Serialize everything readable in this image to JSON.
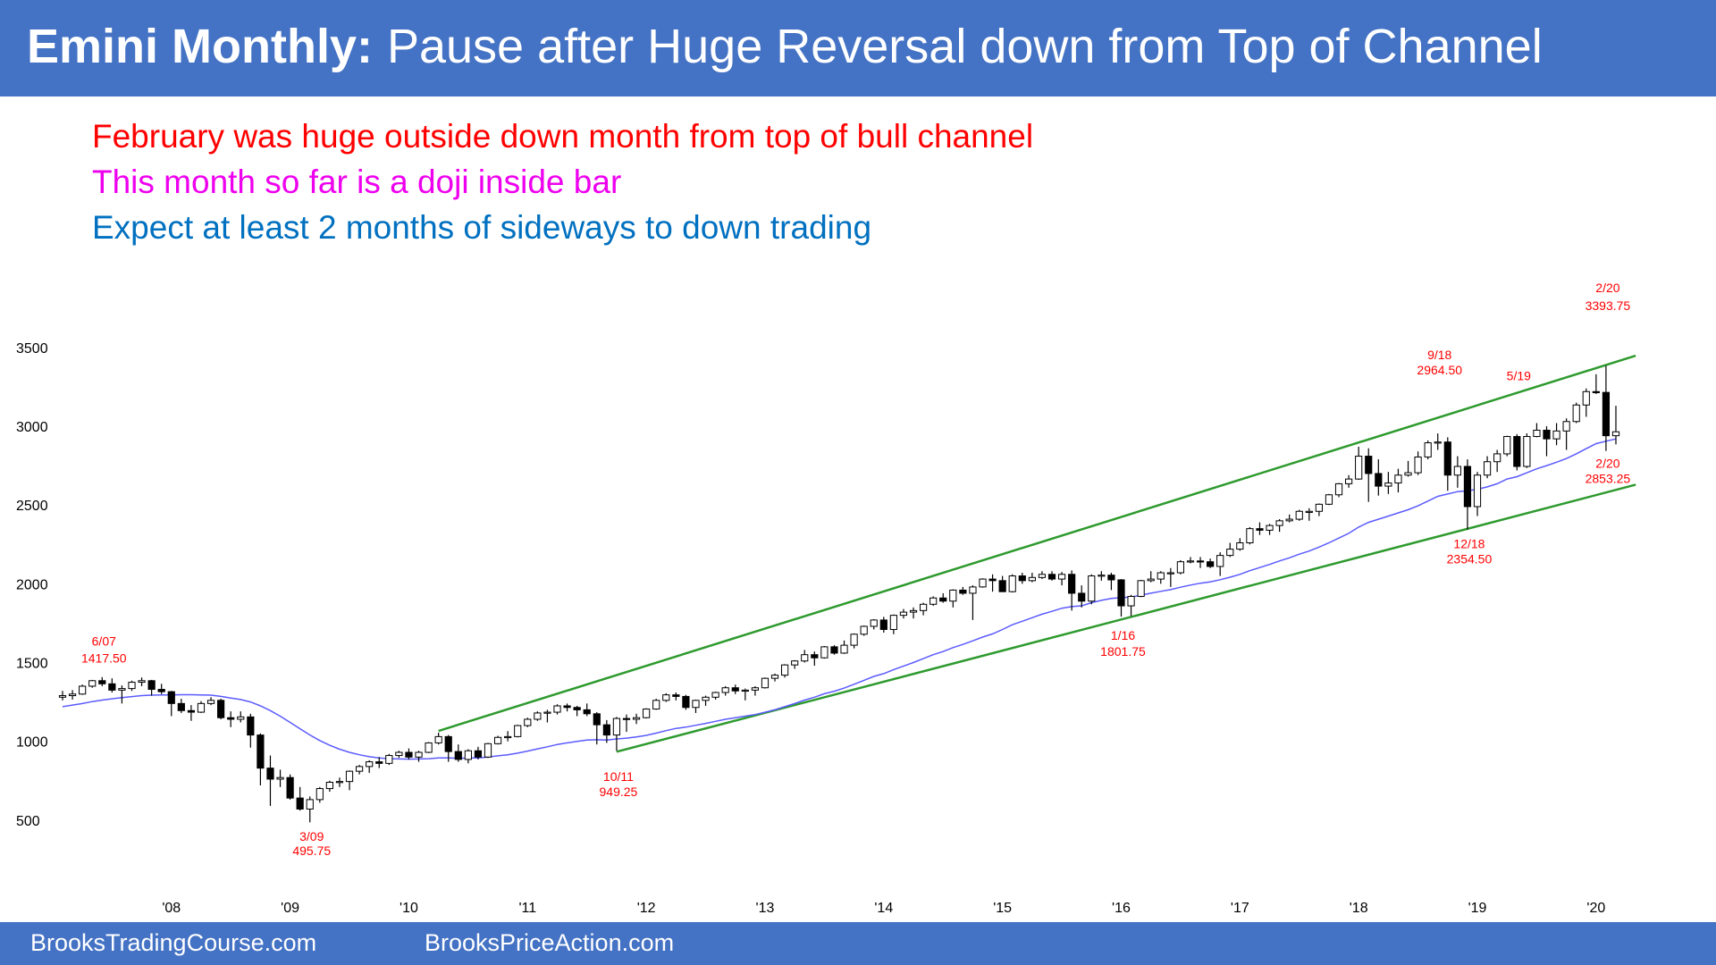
{
  "chart_data": {
    "type": "candlestick",
    "title_lead": "Emini Monthly:",
    "title": "Pause after Huge Reversal down from Top of Channel",
    "notes": [
      {
        "text": "February was huge outside down month from top of bull channel",
        "color": "#ff0000"
      },
      {
        "text": "This month so far is a doji inside bar",
        "color": "#ee00ee"
      },
      {
        "text": "Expect at least 2 months of sideways to down trading",
        "color": "#0070c0"
      }
    ],
    "categories": [
      null,
      null,
      null,
      null,
      null,
      null,
      null,
      null,
      null,
      null,
      null,
      "'08",
      null,
      null,
      null,
      null,
      null,
      null,
      null,
      null,
      null,
      null,
      null,
      "'09",
      null,
      null,
      null,
      null,
      null,
      null,
      null,
      null,
      null,
      null,
      null,
      "'10",
      null,
      null,
      null,
      null,
      null,
      null,
      null,
      null,
      null,
      null,
      null,
      "'11",
      null,
      null,
      null,
      null,
      null,
      null,
      null,
      null,
      null,
      null,
      null,
      "'12",
      null,
      null,
      null,
      null,
      null,
      null,
      null,
      null,
      null,
      null,
      null,
      "'13",
      null,
      null,
      null,
      null,
      null,
      null,
      null,
      null,
      null,
      null,
      null,
      "'14",
      null,
      null,
      null,
      null,
      null,
      null,
      null,
      null,
      null,
      null,
      null,
      "'15",
      null,
      null,
      null,
      null,
      null,
      null,
      null,
      null,
      null,
      null,
      null,
      "'16",
      null,
      null,
      null,
      null,
      null,
      null,
      null,
      null,
      null,
      null,
      null,
      "'17",
      null,
      null,
      null,
      null,
      null,
      null,
      null,
      null,
      null,
      null,
      null,
      "'18",
      null,
      null,
      null,
      null,
      null,
      null,
      null,
      null,
      null,
      null,
      null,
      "'19",
      null,
      null,
      null,
      null,
      null,
      null,
      null,
      null,
      null,
      null,
      null,
      "'20",
      null,
      null
    ],
    "ohlc": [
      [
        1290,
        1330,
        1270,
        1300
      ],
      [
        1300,
        1335,
        1275,
        1310
      ],
      [
        1310,
        1370,
        1305,
        1360
      ],
      [
        1360,
        1400,
        1350,
        1395
      ],
      [
        1395,
        1417.5,
        1360,
        1375
      ],
      [
        1375,
        1410,
        1320,
        1335
      ],
      [
        1335,
        1365,
        1250,
        1345
      ],
      [
        1345,
        1395,
        1330,
        1385
      ],
      [
        1385,
        1415,
        1360,
        1395
      ],
      [
        1395,
        1400,
        1300,
        1340
      ],
      [
        1340,
        1375,
        1310,
        1325
      ],
      [
        1325,
        1330,
        1170,
        1250
      ],
      [
        1250,
        1280,
        1190,
        1205
      ],
      [
        1205,
        1240,
        1140,
        1195
      ],
      [
        1195,
        1265,
        1190,
        1250
      ],
      [
        1250,
        1290,
        1240,
        1270
      ],
      [
        1270,
        1280,
        1150,
        1160
      ],
      [
        1160,
        1200,
        1100,
        1150
      ],
      [
        1150,
        1200,
        1130,
        1165
      ],
      [
        1165,
        1185,
        970,
        1050
      ],
      [
        1050,
        1060,
        730,
        840
      ],
      [
        840,
        920,
        600,
        770
      ],
      [
        770,
        830,
        720,
        780
      ],
      [
        780,
        800,
        640,
        650
      ],
      [
        650,
        720,
        570,
        580
      ],
      [
        580,
        660,
        495.75,
        640
      ],
      [
        640,
        720,
        620,
        710
      ],
      [
        710,
        760,
        690,
        750
      ],
      [
        750,
        780,
        720,
        755
      ],
      [
        755,
        825,
        700,
        820
      ],
      [
        820,
        860,
        800,
        850
      ],
      [
        850,
        890,
        810,
        880
      ],
      [
        880,
        910,
        840,
        870
      ],
      [
        870,
        930,
        860,
        920
      ],
      [
        920,
        950,
        905,
        940
      ],
      [
        940,
        965,
        895,
        910
      ],
      [
        910,
        950,
        880,
        940
      ],
      [
        940,
        1005,
        935,
        1000
      ],
      [
        1000,
        1065,
        990,
        1040
      ],
      [
        1040,
        1050,
        880,
        945
      ],
      [
        945,
        990,
        880,
        895
      ],
      [
        895,
        960,
        870,
        950
      ],
      [
        950,
        975,
        895,
        910
      ],
      [
        910,
        1000,
        905,
        995
      ],
      [
        995,
        1045,
        990,
        1035
      ],
      [
        1035,
        1075,
        1010,
        1040
      ],
      [
        1040,
        1115,
        1035,
        1110
      ],
      [
        1110,
        1160,
        1100,
        1150
      ],
      [
        1150,
        1200,
        1140,
        1190
      ],
      [
        1190,
        1210,
        1130,
        1195
      ],
      [
        1195,
        1245,
        1180,
        1235
      ],
      [
        1235,
        1250,
        1200,
        1225
      ],
      [
        1225,
        1235,
        1170,
        1210
      ],
      [
        1210,
        1250,
        1170,
        1185
      ],
      [
        1185,
        1195,
        990,
        1115
      ],
      [
        1115,
        1145,
        1000,
        1050
      ],
      [
        1050,
        1165,
        949.25,
        1155
      ],
      [
        1155,
        1180,
        1070,
        1150
      ],
      [
        1150,
        1185,
        1120,
        1160
      ],
      [
        1160,
        1220,
        1155,
        1215
      ],
      [
        1215,
        1280,
        1210,
        1270
      ],
      [
        1270,
        1315,
        1260,
        1305
      ],
      [
        1305,
        1320,
        1270,
        1295
      ],
      [
        1295,
        1305,
        1210,
        1225
      ],
      [
        1225,
        1275,
        1190,
        1270
      ],
      [
        1270,
        1300,
        1235,
        1290
      ],
      [
        1290,
        1325,
        1275,
        1320
      ],
      [
        1320,
        1360,
        1300,
        1350
      ],
      [
        1350,
        1370,
        1310,
        1330
      ],
      [
        1330,
        1345,
        1270,
        1335
      ],
      [
        1335,
        1360,
        1300,
        1350
      ],
      [
        1350,
        1415,
        1345,
        1410
      ],
      [
        1410,
        1440,
        1390,
        1430
      ],
      [
        1430,
        1500,
        1415,
        1495
      ],
      [
        1495,
        1525,
        1470,
        1520
      ],
      [
        1520,
        1590,
        1510,
        1560
      ],
      [
        1560,
        1580,
        1490,
        1540
      ],
      [
        1540,
        1615,
        1535,
        1610
      ],
      [
        1610,
        1620,
        1560,
        1570
      ],
      [
        1570,
        1650,
        1565,
        1620
      ],
      [
        1620,
        1695,
        1600,
        1690
      ],
      [
        1690,
        1745,
        1680,
        1740
      ],
      [
        1740,
        1785,
        1720,
        1780
      ],
      [
        1780,
        1800,
        1700,
        1720
      ],
      [
        1720,
        1815,
        1690,
        1810
      ],
      [
        1810,
        1850,
        1790,
        1830
      ],
      [
        1830,
        1860,
        1790,
        1840
      ],
      [
        1840,
        1890,
        1810,
        1880
      ],
      [
        1880,
        1930,
        1870,
        1920
      ],
      [
        1920,
        1950,
        1890,
        1900
      ],
      [
        1900,
        1975,
        1860,
        1970
      ],
      [
        1970,
        1990,
        1940,
        1950
      ],
      [
        1950,
        2000,
        1780,
        1990
      ],
      [
        1990,
        2045,
        1985,
        2040
      ],
      [
        2040,
        2070,
        1960,
        2030
      ],
      [
        2030,
        2060,
        1960,
        1960
      ],
      [
        1960,
        2070,
        1955,
        2060
      ],
      [
        2060,
        2080,
        2010,
        2030
      ],
      [
        2030,
        2080,
        2020,
        2050
      ],
      [
        2050,
        2090,
        2040,
        2070
      ],
      [
        2070,
        2090,
        2030,
        2040
      ],
      [
        2040,
        2085,
        2000,
        2070
      ],
      [
        2070,
        2095,
        1840,
        1950
      ],
      [
        1950,
        2000,
        1860,
        1900
      ],
      [
        1900,
        2070,
        1880,
        2060
      ],
      [
        2060,
        2090,
        2030,
        2065
      ],
      [
        2065,
        2080,
        1970,
        2035
      ],
      [
        2035,
        2040,
        1801.75,
        1870
      ],
      [
        1870,
        1940,
        1805,
        1930
      ],
      [
        1930,
        2035,
        1925,
        2030
      ],
      [
        2030,
        2090,
        2020,
        2040
      ],
      [
        2040,
        2090,
        2010,
        2080
      ],
      [
        2080,
        2110,
        1990,
        2080
      ],
      [
        2080,
        2160,
        2070,
        2150
      ],
      [
        2150,
        2180,
        2140,
        2155
      ],
      [
        2155,
        2180,
        2110,
        2150
      ],
      [
        2150,
        2170,
        2110,
        2120
      ],
      [
        2120,
        2210,
        2060,
        2190
      ],
      [
        2190,
        2270,
        2180,
        2230
      ],
      [
        2230,
        2300,
        2220,
        2270
      ],
      [
        2270,
        2370,
        2260,
        2360
      ],
      [
        2360,
        2400,
        2320,
        2350
      ],
      [
        2350,
        2390,
        2320,
        2380
      ],
      [
        2380,
        2420,
        2340,
        2410
      ],
      [
        2410,
        2450,
        2400,
        2420
      ],
      [
        2420,
        2480,
        2410,
        2470
      ],
      [
        2470,
        2490,
        2410,
        2470
      ],
      [
        2470,
        2520,
        2440,
        2515
      ],
      [
        2515,
        2580,
        2510,
        2575
      ],
      [
        2575,
        2650,
        2560,
        2645
      ],
      [
        2645,
        2700,
        2620,
        2675
      ],
      [
        2675,
        2880,
        2670,
        2820
      ],
      [
        2820,
        2870,
        2530,
        2710
      ],
      [
        2710,
        2800,
        2570,
        2630
      ],
      [
        2630,
        2720,
        2580,
        2650
      ],
      [
        2650,
        2740,
        2590,
        2700
      ],
      [
        2700,
        2790,
        2690,
        2715
      ],
      [
        2715,
        2850,
        2700,
        2815
      ],
      [
        2815,
        2920,
        2800,
        2905
      ],
      [
        2905,
        2964.5,
        2860,
        2910
      ],
      [
        2910,
        2940,
        2600,
        2700
      ],
      [
        2700,
        2820,
        2620,
        2755
      ],
      [
        2755,
        2800,
        2354.5,
        2500
      ],
      [
        2500,
        2720,
        2440,
        2700
      ],
      [
        2700,
        2820,
        2680,
        2785
      ],
      [
        2785,
        2860,
        2720,
        2835
      ],
      [
        2835,
        2950,
        2820,
        2945
      ],
      [
        2945,
        2960,
        2730,
        2755
      ],
      [
        2755,
        2965,
        2745,
        2945
      ],
      [
        2945,
        3030,
        2940,
        2985
      ],
      [
        2985,
        3010,
        2820,
        2930
      ],
      [
        2930,
        3030,
        2890,
        2980
      ],
      [
        2980,
        3060,
        2860,
        3040
      ],
      [
        3040,
        3160,
        3030,
        3145
      ],
      [
        3145,
        3250,
        3070,
        3230
      ],
      [
        3230,
        3340,
        3215,
        3225
      ],
      [
        3225,
        3393.75,
        2853.25,
        2950
      ],
      [
        2950,
        3140,
        2895,
        2975
      ]
    ],
    "up_color": "#ffffff",
    "down_color": "#000000",
    "ma": {
      "color": "#5b5bff",
      "values": [
        1230,
        1240,
        1250,
        1262,
        1272,
        1280,
        1287,
        1294,
        1300,
        1303,
        1305,
        1305,
        1306,
        1306,
        1305,
        1303,
        1295,
        1285,
        1275,
        1260,
        1235,
        1205,
        1170,
        1130,
        1090,
        1050,
        1015,
        985,
        960,
        940,
        925,
        912,
        905,
        900,
        898,
        897,
        898,
        900,
        905,
        905,
        902,
        905,
        905,
        910,
        918,
        925,
        935,
        948,
        962,
        975,
        990,
        1000,
        1010,
        1018,
        1020,
        1018,
        1025,
        1030,
        1038,
        1048,
        1062,
        1078,
        1092,
        1100,
        1112,
        1124,
        1137,
        1150,
        1160,
        1170,
        1180,
        1195,
        1210,
        1230,
        1250,
        1272,
        1290,
        1312,
        1328,
        1348,
        1372,
        1397,
        1422,
        1440,
        1465,
        1488,
        1510,
        1535,
        1560,
        1580,
        1605,
        1625,
        1648,
        1672,
        1692,
        1720,
        1750,
        1772,
        1795,
        1817,
        1835,
        1855,
        1865,
        1870,
        1890,
        1905,
        1917,
        1922,
        1926,
        1938,
        1950,
        1962,
        1973,
        1988,
        2002,
        2014,
        2022,
        2036,
        2052,
        2070,
        2093,
        2113,
        2133,
        2155,
        2175,
        2198,
        2218,
        2243,
        2270,
        2300,
        2330,
        2370,
        2400,
        2420,
        2440,
        2460,
        2480,
        2505,
        2535,
        2565,
        2580,
        2595,
        2600,
        2610,
        2625,
        2645,
        2675,
        2690,
        2715,
        2740,
        2760,
        2782,
        2805,
        2835,
        2868,
        2900,
        2915,
        2930
      ]
    },
    "channel": {
      "color": "#2e9a2e",
      "lines": [
        {
          "x": [
            38,
            159
          ],
          "values": [
            1076,
            3458
          ]
        },
        {
          "x": [
            56,
            159
          ],
          "values": [
            944,
            2639
          ]
        }
      ]
    },
    "annotation_color": "#ff0000",
    "annotations": [
      {
        "date": "6/07",
        "value": 1417.5,
        "label": "1417.50"
      },
      {
        "date": "3/09",
        "value": 495.75,
        "label": "495.75"
      },
      {
        "date": "10/11",
        "value": 949.25,
        "label": "949.25"
      },
      {
        "date": "1/16",
        "value": 1801.75,
        "label": "1801.75"
      },
      {
        "date": "9/18",
        "value": 2964.5,
        "label": "2964.50"
      },
      {
        "date": "5/19"
      },
      {
        "date": "12/18",
        "value": 2354.5,
        "label": "2354.50"
      },
      {
        "date": "2/20",
        "value": 3393.75,
        "label": "3393.75"
      },
      {
        "date": "2/20",
        "value": 2853.25,
        "label": "2853.25"
      }
    ],
    "ylim": [
      100,
      3750
    ],
    "yticks": [
      500,
      1000,
      1500,
      2000,
      2500,
      3000,
      3500
    ]
  },
  "footer": [
    "BrooksTradingCourse.com",
    "BrooksPriceAction.com"
  ]
}
